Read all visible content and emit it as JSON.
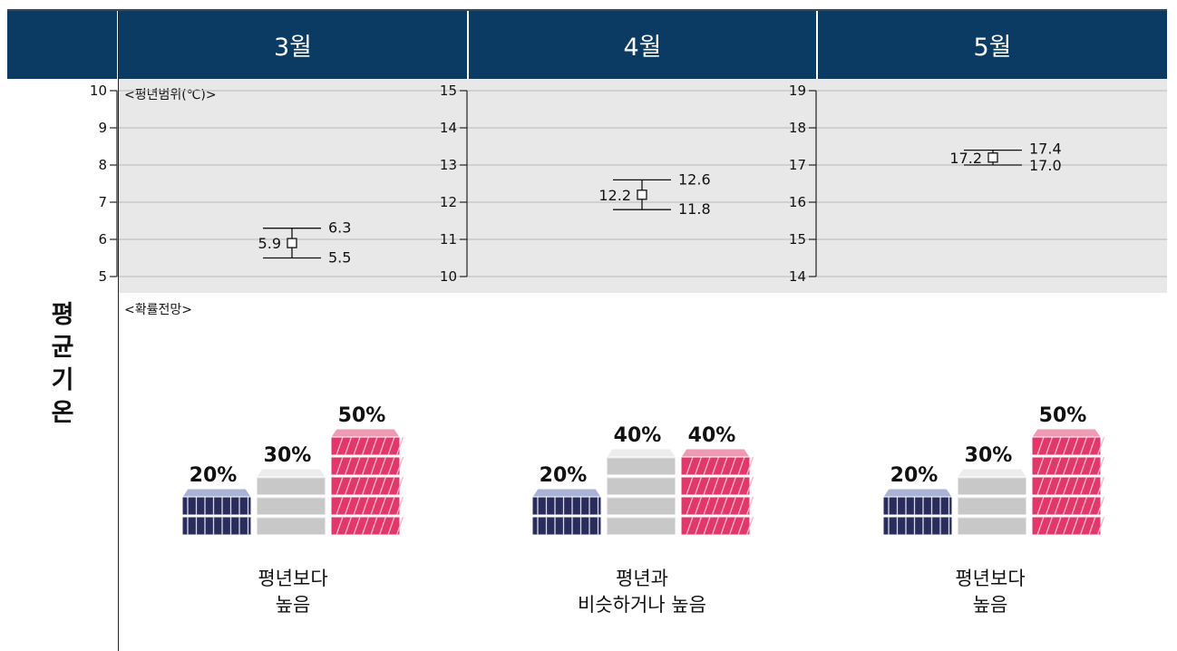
{
  "months": [
    "3월",
    "4월",
    "5월"
  ],
  "side_label": [
    "평",
    "균",
    "기",
    "온"
  ],
  "range_label": "<평년범위(℃)>",
  "prob_label": "<확률전망>",
  "colors": {
    "header": "#0b3a62",
    "below": "#2a2c5c",
    "normal": "#c8c8c8",
    "above": "#e0386a"
  },
  "chart_data": [
    {
      "type": "range",
      "month": "3월",
      "ylim": [
        5,
        10
      ],
      "ticks": [
        "10",
        "9",
        "8",
        "7",
        "6",
        "5"
      ],
      "mean": 5.9,
      "low": 5.5,
      "high": 6.3,
      "mean_label": "5.9",
      "low_label": "5.5",
      "high_label": "6.3",
      "probabilities": [
        {
          "category": "below",
          "value": 20,
          "label": "20%"
        },
        {
          "category": "normal",
          "value": 30,
          "label": "30%"
        },
        {
          "category": "above",
          "value": 50,
          "label": "50%"
        }
      ],
      "outlook": [
        "평년보다",
        "높음"
      ]
    },
    {
      "type": "range",
      "month": "4월",
      "ylim": [
        10,
        15
      ],
      "ticks": [
        "15",
        "14",
        "13",
        "12",
        "11",
        "10"
      ],
      "mean": 12.2,
      "low": 11.8,
      "high": 12.6,
      "mean_label": "12.2",
      "low_label": "11.8",
      "high_label": "12.6",
      "probabilities": [
        {
          "category": "below",
          "value": 20,
          "label": "20%"
        },
        {
          "category": "normal",
          "value": 40,
          "label": "40%"
        },
        {
          "category": "above",
          "value": 40,
          "label": "40%"
        }
      ],
      "outlook": [
        "평년과",
        "비슷하거나 높음"
      ]
    },
    {
      "type": "range",
      "month": "5월",
      "ylim": [
        14,
        19
      ],
      "ticks": [
        "19",
        "18",
        "17",
        "16",
        "15",
        "14"
      ],
      "mean": 17.2,
      "low": 17.0,
      "high": 17.4,
      "mean_label": "17.2",
      "low_label": "17.0",
      "high_label": "17.4",
      "probabilities": [
        {
          "category": "below",
          "value": 20,
          "label": "20%"
        },
        {
          "category": "normal",
          "value": 30,
          "label": "30%"
        },
        {
          "category": "above",
          "value": 50,
          "label": "50%"
        }
      ],
      "outlook": [
        "평년보다",
        "높음"
      ]
    }
  ]
}
